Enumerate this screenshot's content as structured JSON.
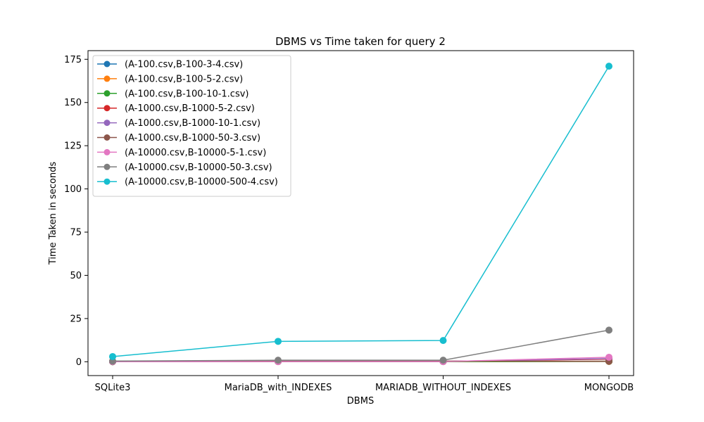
{
  "chart_data": {
    "type": "line",
    "title": "DBMS vs Time taken for query 2",
    "xlabel": "DBMS",
    "ylabel": "Time Taken in seconds",
    "categories": [
      "SQLite3",
      "MariaDB_with_INDEXES",
      "MARIADB_WITHOUT_INDEXES",
      "MONGODB"
    ],
    "ylim": [
      -8,
      180
    ],
    "yticks": [
      0,
      25,
      50,
      75,
      100,
      125,
      150,
      175
    ],
    "legend_position": "upper-left",
    "series": [
      {
        "name": "(A-100.csv,B-100-3-4.csv)",
        "color": "#1f77b4",
        "values": [
          0.05,
          0.1,
          0.1,
          0.2
        ]
      },
      {
        "name": "(A-100.csv,B-100-5-2.csv)",
        "color": "#ff7f0e",
        "values": [
          0.05,
          0.1,
          0.1,
          0.2
        ]
      },
      {
        "name": "(A-100.csv,B-100-10-1.csv)",
        "color": "#2ca02c",
        "values": [
          0.05,
          0.1,
          0.1,
          0.3
        ]
      },
      {
        "name": "(A-1000.csv,B-1000-5-2.csv)",
        "color": "#d62728",
        "values": [
          0.1,
          0.2,
          0.2,
          1.5
        ]
      },
      {
        "name": "(A-1000.csv,B-1000-10-1.csv)",
        "color": "#9467bd",
        "values": [
          0.1,
          0.2,
          0.2,
          1.8
        ]
      },
      {
        "name": "(A-1000.csv,B-1000-50-3.csv)",
        "color": "#8c564b",
        "values": [
          0.3,
          0.4,
          0.4,
          0.3
        ]
      },
      {
        "name": "(A-10000.csv,B-10000-5-1.csv)",
        "color": "#e377c2",
        "values": [
          0.1,
          0.1,
          0.1,
          2.6
        ]
      },
      {
        "name": "(A-10000.csv,B-10000-50-3.csv)",
        "color": "#7f7f7f",
        "values": [
          0.4,
          0.9,
          0.9,
          18.3
        ]
      },
      {
        "name": "(A-10000.csv,B-10000-500-4.csv)",
        "color": "#17becf",
        "values": [
          3.0,
          11.8,
          12.3,
          171.0
        ]
      }
    ]
  }
}
